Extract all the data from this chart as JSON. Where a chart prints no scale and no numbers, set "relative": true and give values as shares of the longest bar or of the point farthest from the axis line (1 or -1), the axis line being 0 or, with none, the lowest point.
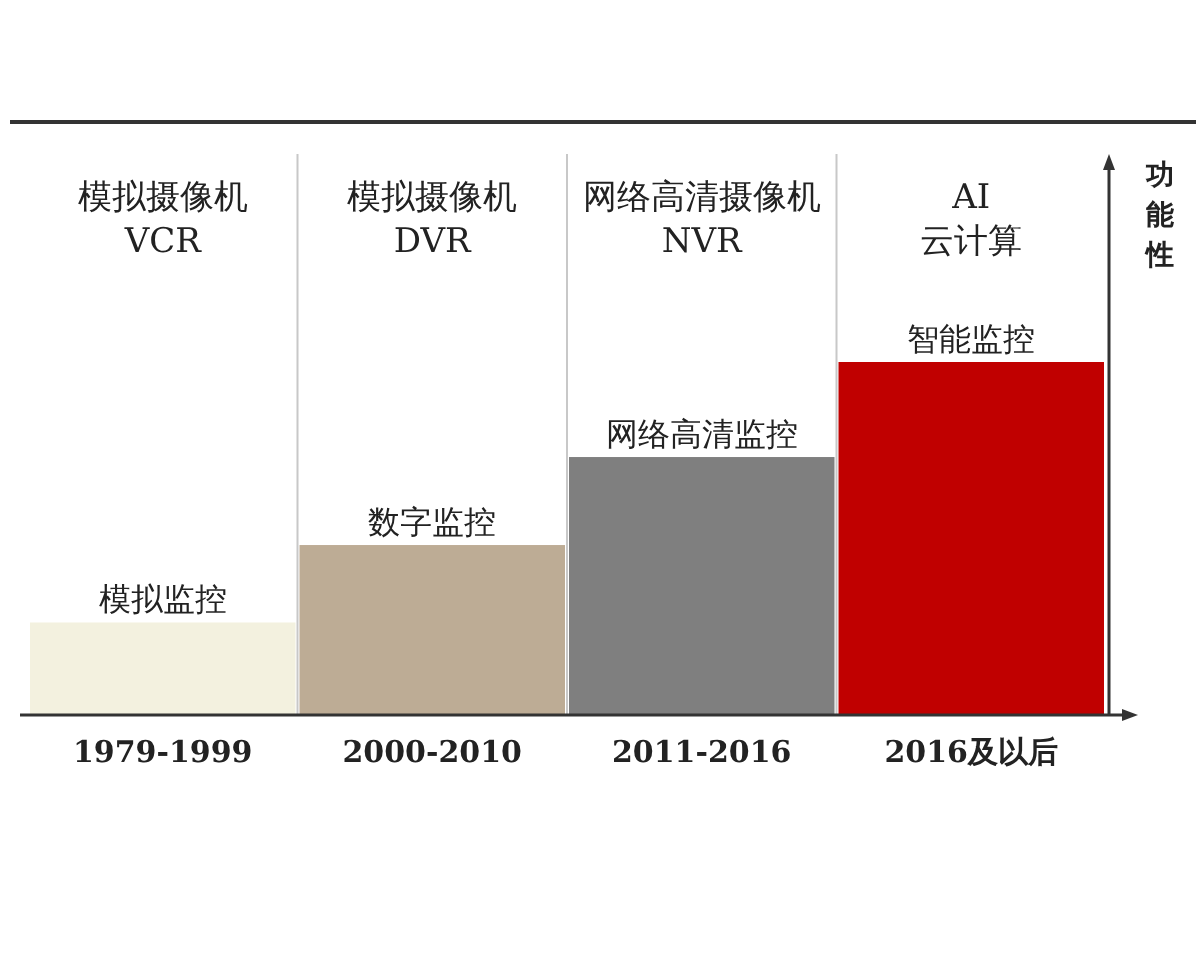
{
  "chart_data": {
    "type": "bar",
    "categories": [
      "1979-1999",
      "2000-2010",
      "2011-2016",
      "2016及以后"
    ],
    "values": [
      0.26,
      0.48,
      0.73,
      1
    ],
    "colors": [
      "#f3f1df",
      "#bdac95",
      "#7f7f7f",
      "#c00000"
    ],
    "relative": true,
    "ylabel": "功能性",
    "annotations": [
      "模拟摄像机\nVCR",
      "模拟摄像机\nDVR",
      "网络高清摄像机\nNVR",
      "AI\n云计算",
      {
        "text": "模拟监控",
        "x": "1979-1999",
        "y": 0.26
      },
      {
        "text": "数字监控",
        "x": "2000-2010",
        "y": 0.48
      },
      {
        "text": "网络高清监控",
        "x": "2011-2016",
        "y": 0.73
      },
      {
        "text": "智能监控",
        "x": "2016及以后",
        "y": 1
      }
    ]
  }
}
